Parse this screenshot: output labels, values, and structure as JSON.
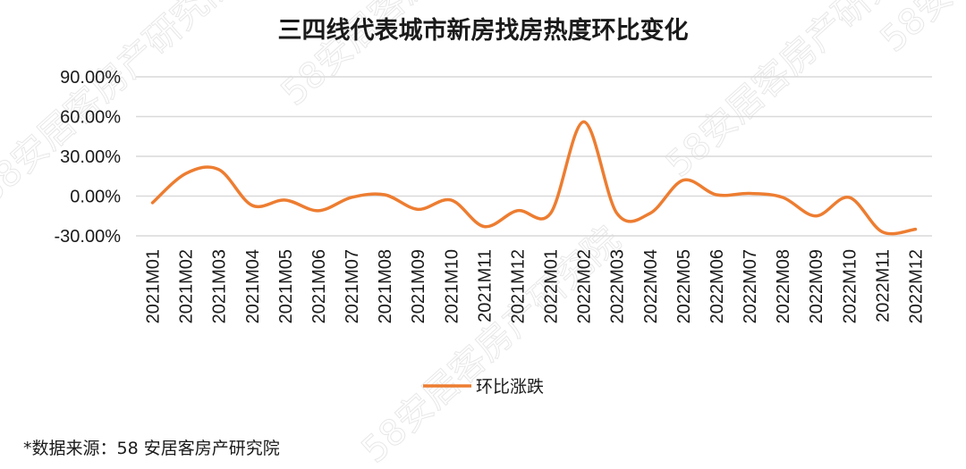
{
  "watermark_text": "58安居客房产研究院",
  "chart_data": {
    "type": "line",
    "title": "三四线代表城市新房找房热度环比变化",
    "categories": [
      "2021M01",
      "2021M02",
      "2021M03",
      "2021M04",
      "2021M05",
      "2021M06",
      "2021M07",
      "2021M08",
      "2021M09",
      "2021M10",
      "2021M11",
      "2021M12",
      "2022M01",
      "2022M02",
      "2022M03",
      "2022M04",
      "2022M05",
      "2022M06",
      "2022M07",
      "2022M08",
      "2022M09",
      "2022M10",
      "2022M11",
      "2022M12"
    ],
    "y_ticks": [
      "90.00%",
      "60.00%",
      "30.00%",
      "0.00%",
      "-30.00%"
    ],
    "ylim": [
      -30,
      90
    ],
    "grid": true,
    "legend_position": "bottom",
    "series": [
      {
        "name": "环比涨跌",
        "color": "#ED7D31",
        "values": [
          -5,
          17,
          20,
          -7,
          -3,
          -11,
          -1,
          1,
          -10,
          -3,
          -23,
          -11,
          -13,
          56,
          -13,
          -13,
          12,
          1,
          2,
          -1,
          -15,
          -1,
          -27,
          -25
        ]
      }
    ]
  },
  "source_note": "*数据来源：58 安居客房产研究院"
}
